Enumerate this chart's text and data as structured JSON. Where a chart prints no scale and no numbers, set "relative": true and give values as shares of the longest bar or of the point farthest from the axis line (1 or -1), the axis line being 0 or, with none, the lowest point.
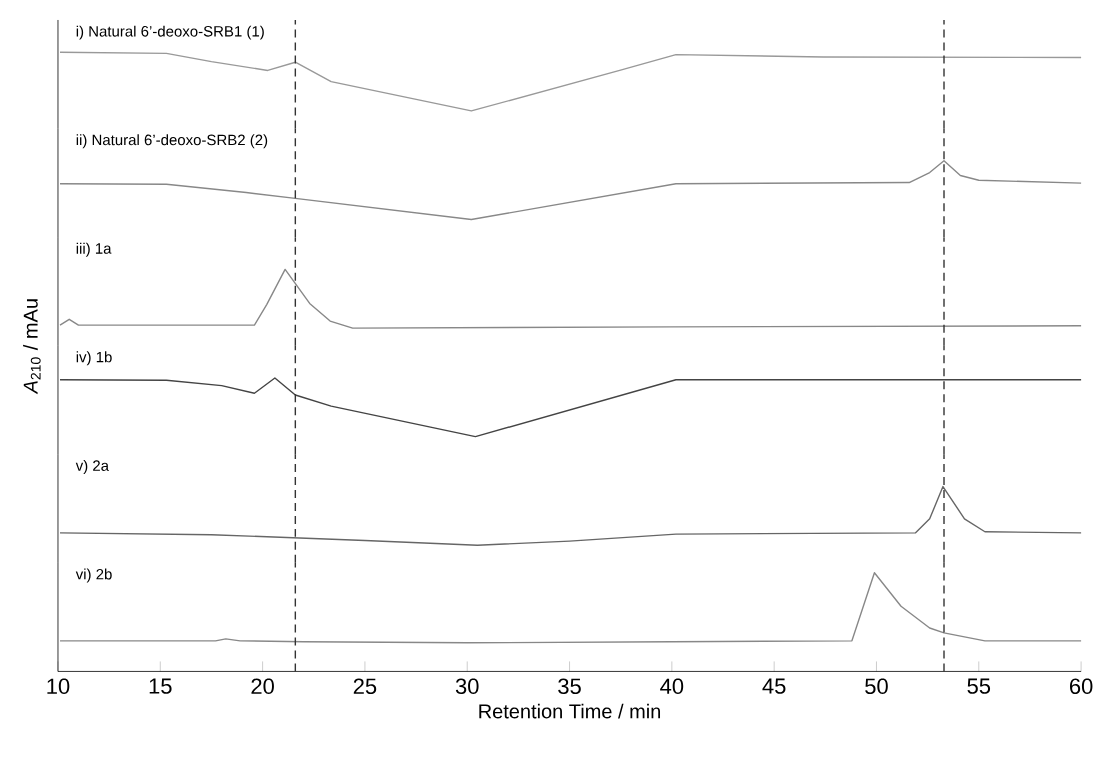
{
  "chart_data": [
    {
      "type": "line",
      "relative": true,
      "xlim": [
        10,
        60
      ],
      "tick_labels": false,
      "annotations": [
        "i) Natural 6’-deoxo-SRB1 (1)"
      ],
      "ref_lines": [
        {
          "axis": "x",
          "value": 21.6,
          "line_style": "dashed",
          "color": "#333333"
        },
        {
          "axis": "x",
          "value": 53.3,
          "line_style": "dashed",
          "color": "#333333"
        }
      ],
      "series": [
        {
          "color": "#999999",
          "x": [
            10.1,
            15.3,
            17.5,
            20.25,
            21.6,
            23.35,
            30.2,
            37.45,
            40.2,
            47.4,
            60
          ],
          "values": [
            1,
            0.98,
            0.84,
            0.69,
            0.83,
            0.5,
            0,
            0.69,
            0.96,
            0.92,
            0.91
          ]
        }
      ]
    },
    {
      "type": "line",
      "relative": true,
      "xlim": [
        10,
        60
      ],
      "tick_labels": false,
      "annotations": [
        "ii) Natural 6’-deoxo-SRB2 (2)"
      ],
      "ref_lines": [
        {
          "axis": "x",
          "value": 21.6,
          "line_style": "dashed",
          "color": "#333333"
        },
        {
          "axis": "x",
          "value": 53.3,
          "line_style": "dashed",
          "color": "#333333"
        }
      ],
      "series": [
        {
          "color": "#888888",
          "x": [
            10.1,
            15.3,
            19.2,
            21.6,
            30.2,
            40.2,
            51.6,
            52.6,
            53.3,
            54.1,
            55.0,
            60
          ],
          "values": [
            0.61,
            0.6,
            0.46,
            0.36,
            0,
            0.61,
            0.63,
            0.8,
            1,
            0.75,
            0.67,
            0.62
          ]
        }
      ]
    },
    {
      "type": "line",
      "relative": true,
      "xlim": [
        10,
        60
      ],
      "tick_labels": false,
      "ylabel": "*A*$_{210}$ / mAu",
      "annotations": [
        "iii) 1a"
      ],
      "ref_lines": [
        {
          "axis": "x",
          "value": 21.6,
          "line_style": "dashed",
          "color": "#333333"
        },
        {
          "axis": "x",
          "value": 53.3,
          "line_style": "dashed",
          "color": "#333333"
        }
      ],
      "series": [
        {
          "color": "#888888",
          "x": [
            10.1,
            10.55,
            11.0,
            19.6,
            20.2,
            21.1,
            22.3,
            23.3,
            24.4,
            40,
            60
          ],
          "values": [
            0.05,
            0.15,
            0.05,
            0.05,
            0.4,
            1,
            0.42,
            0.12,
            0,
            0.02,
            0.04
          ]
        }
      ]
    },
    {
      "type": "line",
      "relative": true,
      "xlim": [
        10,
        60
      ],
      "tick_labels": false,
      "annotations": [
        "iv) 1b"
      ],
      "ref_lines": [
        {
          "axis": "x",
          "value": 21.6,
          "line_style": "dashed",
          "color": "#333333"
        },
        {
          "axis": "x",
          "value": 53.3,
          "line_style": "dashed",
          "color": "#333333"
        }
      ],
      "series": [
        {
          "color": "#444444",
          "x": [
            10.1,
            15.3,
            18.0,
            19.6,
            20.6,
            21.6,
            23.35,
            30.4,
            40.2,
            47.6,
            60
          ],
          "values": [
            0.97,
            0.96,
            0.87,
            0.74,
            1,
            0.71,
            0.52,
            0,
            0.97,
            0.97,
            0.97
          ]
        }
      ]
    },
    {
      "type": "line",
      "relative": true,
      "xlim": [
        10,
        60
      ],
      "tick_labels": false,
      "annotations": [
        "v) 2a"
      ],
      "ref_lines": [
        {
          "axis": "x",
          "value": 21.6,
          "line_style": "dashed",
          "color": "#333333"
        },
        {
          "axis": "x",
          "value": 53.3,
          "line_style": "dashed",
          "color": "#333333"
        }
      ],
      "series": [
        {
          "color": "#666666",
          "x": [
            10.1,
            17.5,
            25,
            30.5,
            35,
            40.2,
            51.9,
            52.6,
            53.25,
            54.3,
            55.3,
            60
          ],
          "values": [
            0.21,
            0.18,
            0.08,
            0,
            0.07,
            0.19,
            0.21,
            0.45,
            1,
            0.45,
            0.23,
            0.21
          ]
        }
      ]
    },
    {
      "type": "line",
      "relative": true,
      "xlim": [
        10,
        60
      ],
      "xticks": [
        10,
        15,
        20,
        25,
        30,
        35,
        40,
        45,
        50,
        55,
        60
      ],
      "tick_labels": "x",
      "xlabel": "Retention Time / min",
      "annotations": [
        "vi) 2b"
      ],
      "ref_lines": [
        {
          "axis": "x",
          "value": 21.6,
          "line_style": "dashed",
          "color": "#333333"
        },
        {
          "axis": "x",
          "value": 53.3,
          "line_style": "dashed",
          "color": "#333333"
        }
      ],
      "series": [
        {
          "color": "#888888",
          "x": [
            10.1,
            17.7,
            18.2,
            18.9,
            22,
            30,
            40,
            48.8,
            49.9,
            51.2,
            52.6,
            53.3,
            55.3,
            60
          ],
          "values": [
            0.31,
            0.31,
            0.33,
            0.31,
            0.3,
            0.29,
            0.3,
            0.31,
            1,
            0.66,
            0.44,
            0.39,
            0.31,
            0.31
          ]
        }
      ]
    }
  ]
}
